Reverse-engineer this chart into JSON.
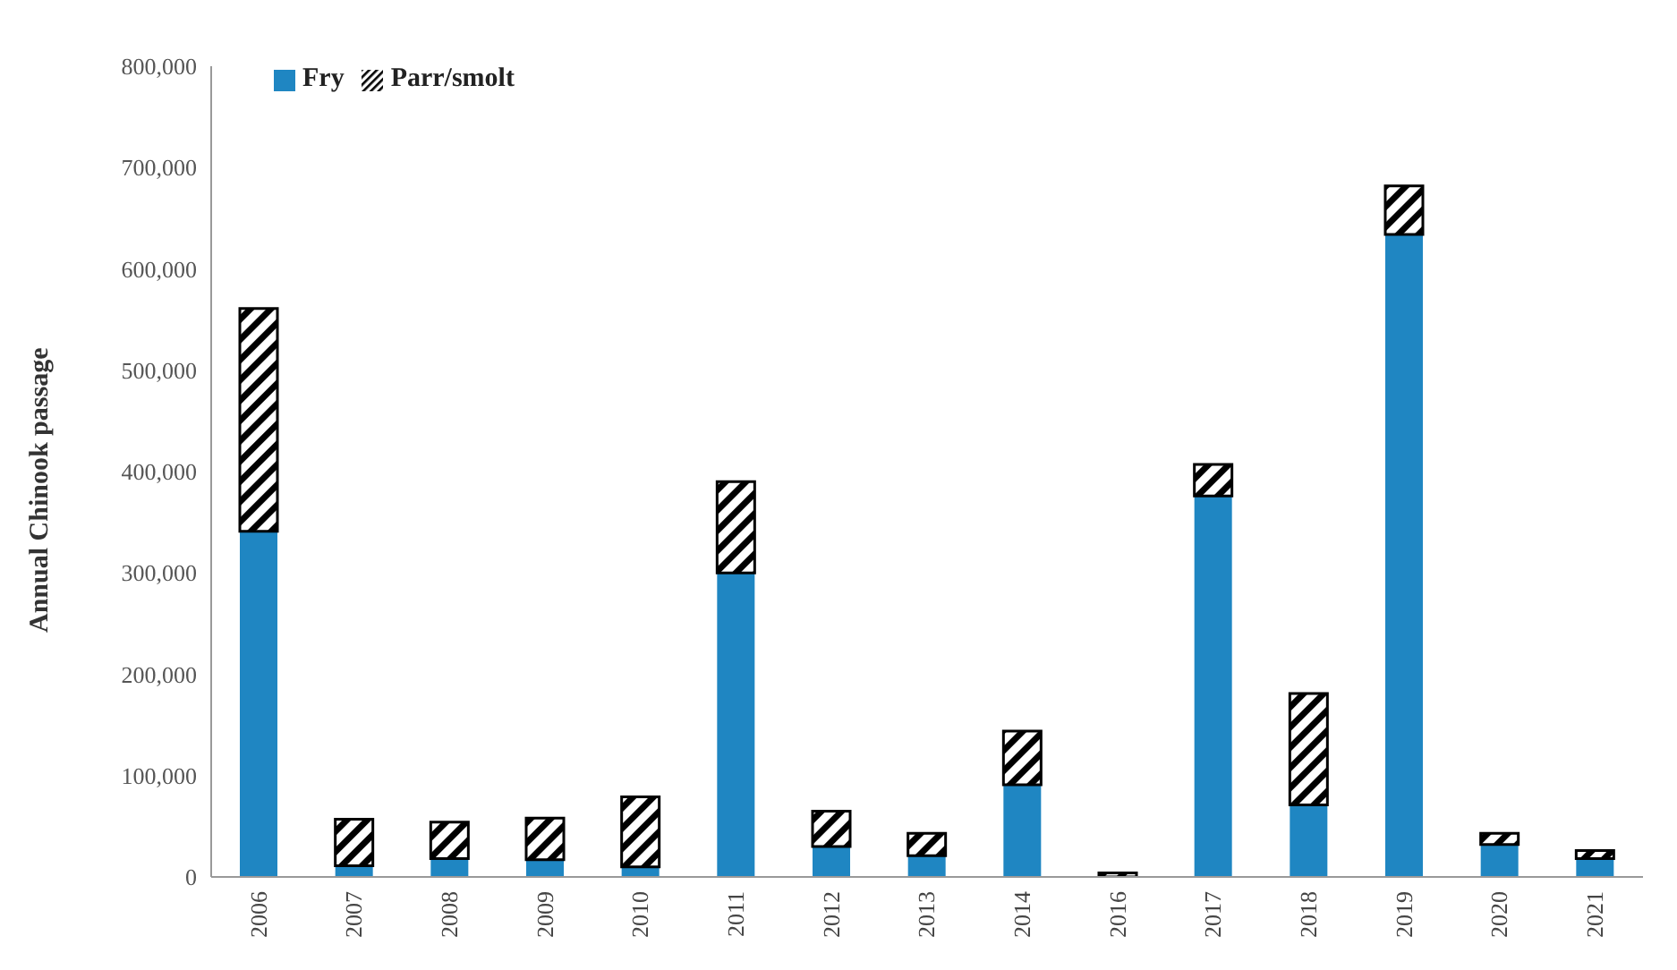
{
  "chart_data": {
    "type": "bar",
    "ylabel": "Annual Chinook passage",
    "categories": [
      "2006",
      "2007",
      "2008",
      "2009",
      "2010",
      "2011",
      "2012",
      "2013",
      "2014",
      "2016",
      "2017",
      "2018",
      "2019",
      "2020",
      "2021"
    ],
    "series": [
      {
        "name": "Fry",
        "color": "#1f86c2",
        "values": [
          341000,
          11000,
          18000,
          17000,
          10000,
          300000,
          30000,
          21000,
          91000,
          0,
          376000,
          71000,
          634000,
          32000,
          18000
        ]
      },
      {
        "name": "Parr/smolt",
        "color": "#000000",
        "values": [
          220000,
          46000,
          36000,
          41000,
          69000,
          90000,
          35000,
          22000,
          53000,
          4000,
          31000,
          110000,
          48000,
          11000,
          8000
        ]
      }
    ],
    "stacked": true,
    "ylim": [
      0,
      800000
    ],
    "yticks": [
      0,
      {
        "value": 100000,
        "label": "100,000"
      },
      {
        "value": 200000,
        "label": "200,000"
      },
      {
        "value": 300000,
        "label": "300,000"
      },
      {
        "value": 400000,
        "label": "400,000"
      },
      {
        "value": 500000,
        "label": "500,000"
      },
      {
        "value": 600000,
        "label": "600,000"
      },
      {
        "value": 700000,
        "label": "700,000"
      },
      {
        "value": 800000,
        "label": "800,000"
      }
    ],
    "grid": false,
    "legend": "top left"
  }
}
